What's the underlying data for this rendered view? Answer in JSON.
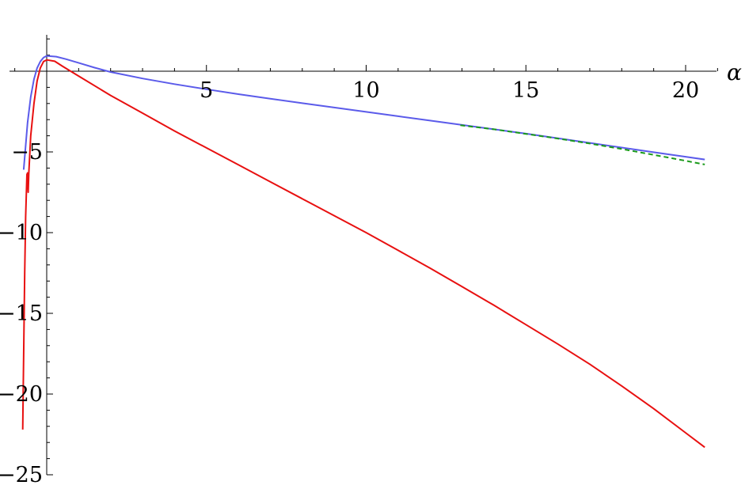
{
  "chart_data": {
    "type": "line",
    "title": "",
    "xlabel": "α",
    "ylabel": "",
    "xlim": [
      -1.4,
      21
    ],
    "ylim": [
      -25.3,
      2.2
    ],
    "grid": false,
    "legend": "none",
    "x_ticks": [
      {
        "value": 5,
        "label": "5"
      },
      {
        "value": 10,
        "label": "10"
      },
      {
        "value": 15,
        "label": "15"
      },
      {
        "value": 20,
        "label": "20"
      }
    ],
    "y_ticks": [
      {
        "value": -5,
        "label": "−5"
      },
      {
        "value": -10,
        "label": "−10"
      },
      {
        "value": -15,
        "label": "−15"
      },
      {
        "value": -20,
        "label": "−20"
      },
      {
        "value": -25,
        "label": "−25"
      }
    ],
    "series": [
      {
        "color": "#5b5bea",
        "dashed": false,
        "points": [
          [
            -0.72,
            -6.1
          ],
          [
            -0.6,
            -3.2
          ],
          [
            -0.5,
            -1.6
          ],
          [
            -0.4,
            -0.5
          ],
          [
            -0.3,
            0.2
          ],
          [
            -0.2,
            0.6
          ],
          [
            -0.1,
            0.85
          ],
          [
            0,
            0.95
          ],
          [
            0.3,
            0.9
          ],
          [
            0.6,
            0.75
          ],
          [
            1,
            0.52
          ],
          [
            1.5,
            0.22
          ],
          [
            2,
            -0.05
          ],
          [
            3,
            -0.45
          ],
          [
            4,
            -0.8
          ],
          [
            5,
            -1.12
          ],
          [
            6,
            -1.42
          ],
          [
            7,
            -1.7
          ],
          [
            8,
            -1.98
          ],
          [
            9,
            -2.25
          ],
          [
            10,
            -2.52
          ],
          [
            11,
            -2.79
          ],
          [
            12,
            -3.06
          ],
          [
            13,
            -3.33
          ],
          [
            14,
            -3.6
          ],
          [
            15,
            -3.87
          ],
          [
            16,
            -4.15
          ],
          [
            17,
            -4.44
          ],
          [
            18,
            -4.73
          ],
          [
            19,
            -5.02
          ],
          [
            20,
            -5.3
          ],
          [
            20.6,
            -5.47
          ]
        ]
      },
      {
        "color": "#e81010",
        "dashed": false,
        "points": [
          [
            -0.75,
            -22.2
          ],
          [
            -0.72,
            -17.5
          ],
          [
            -0.69,
            -12.5
          ],
          [
            -0.66,
            -9
          ],
          [
            -0.62,
            -6.4
          ],
          [
            -0.6,
            -6.3
          ],
          [
            -0.58,
            -7.5
          ],
          [
            -0.56,
            -6.3
          ],
          [
            -0.5,
            -4
          ],
          [
            -0.4,
            -2
          ],
          [
            -0.3,
            -0.6
          ],
          [
            -0.2,
            0.2
          ],
          [
            -0.1,
            0.6
          ],
          [
            0,
            0.7
          ],
          [
            0.25,
            0.62
          ],
          [
            0.5,
            0.3
          ],
          [
            1,
            -0.3
          ],
          [
            2,
            -1.5
          ],
          [
            3,
            -2.6
          ],
          [
            4,
            -3.7
          ],
          [
            5,
            -4.75
          ],
          [
            6,
            -5.8
          ],
          [
            7,
            -6.85
          ],
          [
            8,
            -7.9
          ],
          [
            9,
            -8.95
          ],
          [
            10,
            -10
          ],
          [
            11,
            -11.1
          ],
          [
            12,
            -12.2
          ],
          [
            13,
            -13.35
          ],
          [
            14,
            -14.5
          ],
          [
            15,
            -15.7
          ],
          [
            16,
            -16.9
          ],
          [
            17,
            -18.15
          ],
          [
            18,
            -19.5
          ],
          [
            19,
            -20.9
          ],
          [
            20,
            -22.4
          ],
          [
            20.6,
            -23.3
          ]
        ]
      },
      {
        "color": "#1a9a1a",
        "dashed": true,
        "points": [
          [
            12.95,
            -3.35
          ],
          [
            14,
            -3.6
          ],
          [
            15,
            -3.88
          ],
          [
            16,
            -4.17
          ],
          [
            17,
            -4.48
          ],
          [
            18,
            -4.82
          ],
          [
            19,
            -5.18
          ],
          [
            20,
            -5.55
          ],
          [
            20.6,
            -5.78
          ]
        ]
      }
    ]
  }
}
